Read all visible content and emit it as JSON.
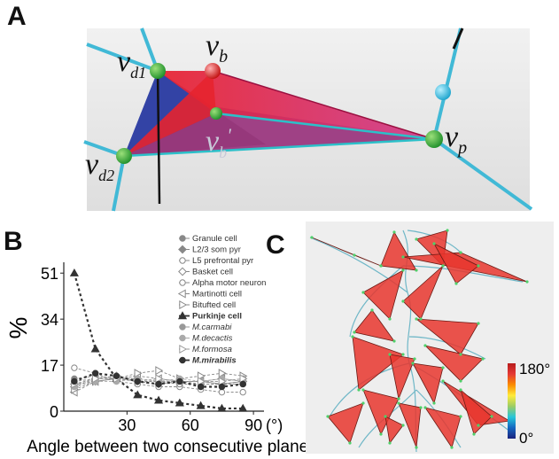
{
  "panel_labels": {
    "a": "A",
    "b": "B",
    "c": "C"
  },
  "panel_a": {
    "vertices": {
      "vd1": "d1",
      "vd2": "d2",
      "vb": "b",
      "vbp": "b",
      "vp": "p",
      "v": "v",
      "prime": "'"
    }
  },
  "chart_data": {
    "type": "line",
    "ylabel": "%",
    "xlabel": "Angle between two consecutive planes",
    "x_unit": "(°)",
    "xticks": [
      30,
      60,
      90
    ],
    "yticks": [
      0,
      17,
      34,
      51
    ],
    "xlim": [
      0,
      95
    ],
    "ylim": [
      0,
      55
    ],
    "x": [
      5,
      15,
      25,
      35,
      45,
      55,
      65,
      75,
      85
    ],
    "series": [
      {
        "name": "Granule cell",
        "marker": "circle-filled",
        "color": "#888888",
        "bold": false,
        "values": [
          12,
          13,
          12,
          11,
          11,
          11,
          10,
          10,
          10
        ]
      },
      {
        "name": "L2/3 som pyr",
        "marker": "diamond-filled",
        "color": "#888888",
        "bold": false,
        "values": [
          10,
          11,
          12,
          12,
          11,
          11,
          11,
          10,
          11
        ]
      },
      {
        "name": "L5 prefrontal pyr",
        "marker": "circle-open",
        "color": "#888888",
        "bold": false,
        "values": [
          16,
          14,
          11,
          10,
          9,
          9,
          8,
          7,
          7
        ]
      },
      {
        "name": "Basket cell",
        "marker": "diamond-open",
        "color": "#888888",
        "bold": false,
        "values": [
          9,
          12,
          13,
          11,
          10,
          11,
          11,
          10,
          11
        ]
      },
      {
        "name": "Alpha motor neuron",
        "marker": "circle-open",
        "color": "#888888",
        "bold": false,
        "values": [
          11,
          12,
          12,
          11,
          11,
          10,
          10,
          10,
          11
        ]
      },
      {
        "name": "Martinotti cell",
        "marker": "triangle-left-open",
        "color": "#888888",
        "bold": false,
        "values": [
          7,
          11,
          12,
          13,
          12,
          11,
          11,
          12,
          11
        ]
      },
      {
        "name": "Bitufted cell",
        "marker": "triangle-right-open",
        "color": "#888888",
        "bold": false,
        "values": [
          8,
          11,
          12,
          14,
          15,
          12,
          13,
          14,
          13
        ]
      },
      {
        "name": "Purkinje cell",
        "marker": "triangle-up-filled",
        "color": "#333333",
        "bold": true,
        "values": [
          51,
          23,
          12,
          6,
          4,
          3,
          2,
          1,
          1
        ]
      },
      {
        "name": "M.carmabi",
        "marker": "circle-filled",
        "color": "#999999",
        "bold": false,
        "values": [
          10,
          12,
          12,
          12,
          11,
          11,
          11,
          11,
          12
        ]
      },
      {
        "name": "M.decactis",
        "marker": "circle-filled",
        "color": "#aaaaaa",
        "bold": false,
        "values": [
          9,
          11,
          11,
          12,
          11,
          12,
          11,
          12,
          11
        ]
      },
      {
        "name": "M.formosa",
        "marker": "triangle-right-open",
        "color": "#999999",
        "bold": false,
        "values": [
          10,
          12,
          12,
          11,
          12,
          11,
          11,
          11,
          12
        ]
      },
      {
        "name": "M.mirabilis",
        "marker": "circle-filled",
        "color": "#333333",
        "bold": true,
        "values": [
          11,
          14,
          13,
          11,
          10,
          11,
          9,
          9,
          10
        ]
      }
    ]
  },
  "panel_c": {
    "colorbar": {
      "max_label": "180°",
      "min_label": "0°",
      "colors": [
        "#1a237e",
        "#1565c0",
        "#26c6da",
        "#9ccc65",
        "#ffeb3b",
        "#fb8c00",
        "#e53935",
        "#b71c1c"
      ]
    }
  }
}
